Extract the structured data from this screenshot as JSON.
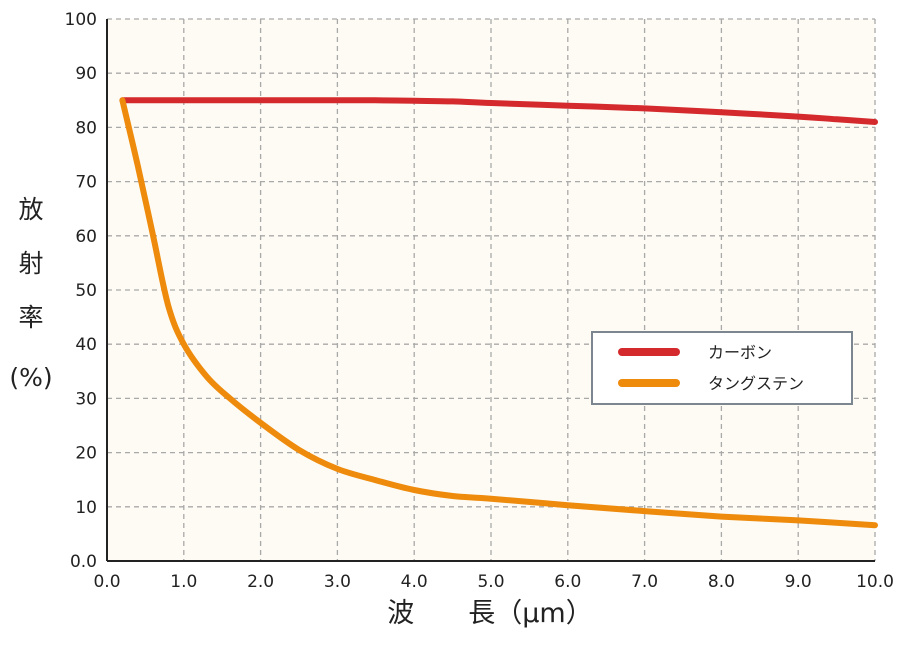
{
  "chart_data": {
    "type": "line",
    "title": "",
    "xlabel": "波　　長（μm）",
    "ylabel_lines": [
      "放",
      "射",
      "率",
      "(%)"
    ],
    "xlim": [
      0,
      10
    ],
    "ylim": [
      0,
      100
    ],
    "x_ticks": [
      "0.0",
      "1.0",
      "2.0",
      "3.0",
      "4.0",
      "5.0",
      "6.0",
      "7.0",
      "8.0",
      "9.0",
      "10.0"
    ],
    "y_ticks": [
      "0.0",
      "10",
      "20",
      "30",
      "40",
      "50",
      "60",
      "70",
      "80",
      "90",
      "100"
    ],
    "grid": true,
    "legend_position": "center-right",
    "series": [
      {
        "name": "カーボン",
        "color": "#d42a2d",
        "x": [
          0.2,
          1.0,
          2.0,
          3.0,
          3.5,
          4.0,
          4.5,
          5.0,
          6.0,
          7.0,
          8.0,
          9.0,
          9.5,
          10.0
        ],
        "y": [
          85,
          85,
          85,
          85,
          85,
          84.9,
          84.8,
          84.5,
          84,
          83.5,
          82.8,
          82,
          81.5,
          81
        ]
      },
      {
        "name": "タングステン",
        "color": "#ee8a0c",
        "x": [
          0.2,
          0.4,
          0.6,
          0.8,
          1.0,
          1.3,
          1.6,
          2.0,
          2.5,
          3.0,
          3.5,
          4.0,
          4.5,
          5.0,
          6.0,
          7.0,
          8.0,
          9.0,
          10.0
        ],
        "y": [
          85,
          73,
          60,
          47,
          40,
          34,
          30,
          25.5,
          20.5,
          17,
          14.9,
          13.1,
          12,
          11.5,
          10.3,
          9.2,
          8.2,
          7.5,
          6.6
        ]
      }
    ]
  }
}
